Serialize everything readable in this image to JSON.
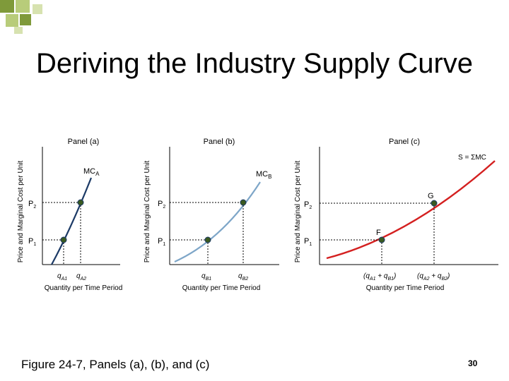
{
  "slide": {
    "title": "Deriving the Industry Supply Curve",
    "caption": "Figure 24-7, Panels (a), (b), and (c)",
    "page_number": "30"
  },
  "colors": {
    "decor_dark": "#7f9a3a",
    "decor_light": "#b8cc7a",
    "curve_a": "#1c3a66",
    "curve_b": "#7ea6c8",
    "curve_c": "#d42020",
    "point": "#3a5a20"
  },
  "panels": [
    {
      "id": "a",
      "label": "Panel (a)",
      "ylabel": "Price and Marginal Cost per Unit",
      "xlabel": "Quantity per Time Period",
      "curve_label": "MC",
      "curve_sub": "A",
      "p_labels": [
        "P",
        "P"
      ],
      "p_subs": [
        "2",
        "1"
      ],
      "q_labels": [
        {
          "main": "q",
          "sub": "A1",
          "rest": ""
        },
        {
          "main": "q",
          "sub": "A2",
          "rest": ""
        }
      ],
      "point_labels": []
    },
    {
      "id": "b",
      "label": "Panel (b)",
      "ylabel": "Price and Marginal Cost per Unit",
      "xlabel": "Quantity per Time Period",
      "curve_label": "MC",
      "curve_sub": "B",
      "p_labels": [
        "P",
        "P"
      ],
      "p_subs": [
        "2",
        "1"
      ],
      "q_labels": [
        {
          "main": "q",
          "sub": "B1",
          "rest": ""
        },
        {
          "main": "q",
          "sub": "B2",
          "rest": ""
        }
      ],
      "point_labels": []
    },
    {
      "id": "c",
      "label": "Panel (c)",
      "ylabel": "Price and Marginal Cost per Unit",
      "xlabel": "Quantity per Time Period",
      "curve_label": "S = ΣMC",
      "curve_sub": "",
      "p_labels": [
        "P",
        "P"
      ],
      "p_subs": [
        "2",
        "1"
      ],
      "q_labels": [
        {
          "main": "(q",
          "sub": "A1",
          "rest": " + q"
        },
        {
          "main": "(q",
          "sub": "A2",
          "rest": " + q"
        }
      ],
      "q_labels_tail": [
        {
          "sub": "B1",
          "rest": ")"
        },
        {
          "sub": "B2",
          "rest": ")"
        }
      ],
      "point_labels": [
        "F",
        "G"
      ]
    }
  ]
}
